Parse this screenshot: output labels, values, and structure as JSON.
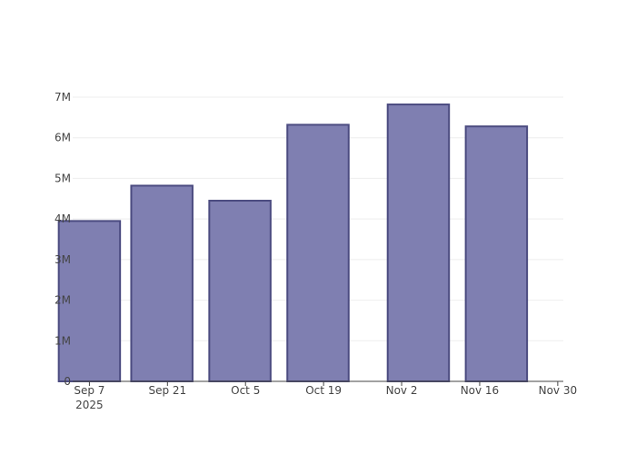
{
  "chart_data": {
    "type": "bar",
    "x_axis_type": "date",
    "x": [
      "2025-09-07",
      "2025-09-20",
      "2025-10-04",
      "2025-10-18",
      "2025-11-05",
      "2025-11-19"
    ],
    "values": [
      3950000,
      4820000,
      4450000,
      6320000,
      6820000,
      6280000
    ],
    "xlim": [
      "2025-09-04",
      "2025-12-01"
    ],
    "ylim": [
      0,
      7000000
    ],
    "x_ticks": [
      {
        "date": "2025-09-07",
        "label": "Sep 7",
        "sublabel": "2025"
      },
      {
        "date": "2025-09-21",
        "label": "Sep 21"
      },
      {
        "date": "2025-10-05",
        "label": "Oct 5"
      },
      {
        "date": "2025-10-19",
        "label": "Oct 19"
      },
      {
        "date": "2025-11-02",
        "label": "Nov 2"
      },
      {
        "date": "2025-11-16",
        "label": "Nov 16"
      },
      {
        "date": "2025-11-30",
        "label": "Nov 30"
      }
    ],
    "y_ticks": [
      {
        "value": 0,
        "label": "0"
      },
      {
        "value": 1000000,
        "label": "1M"
      },
      {
        "value": 2000000,
        "label": "2M"
      },
      {
        "value": 3000000,
        "label": "3M"
      },
      {
        "value": 4000000,
        "label": "4M"
      },
      {
        "value": 5000000,
        "label": "5M"
      },
      {
        "value": 6000000,
        "label": "6M"
      },
      {
        "value": 7000000,
        "label": "7M"
      }
    ],
    "grid": true,
    "bar_fill": "#7f7fb1",
    "bar_stroke": "#4b4b80",
    "title": "",
    "xlabel": "",
    "ylabel": ""
  }
}
